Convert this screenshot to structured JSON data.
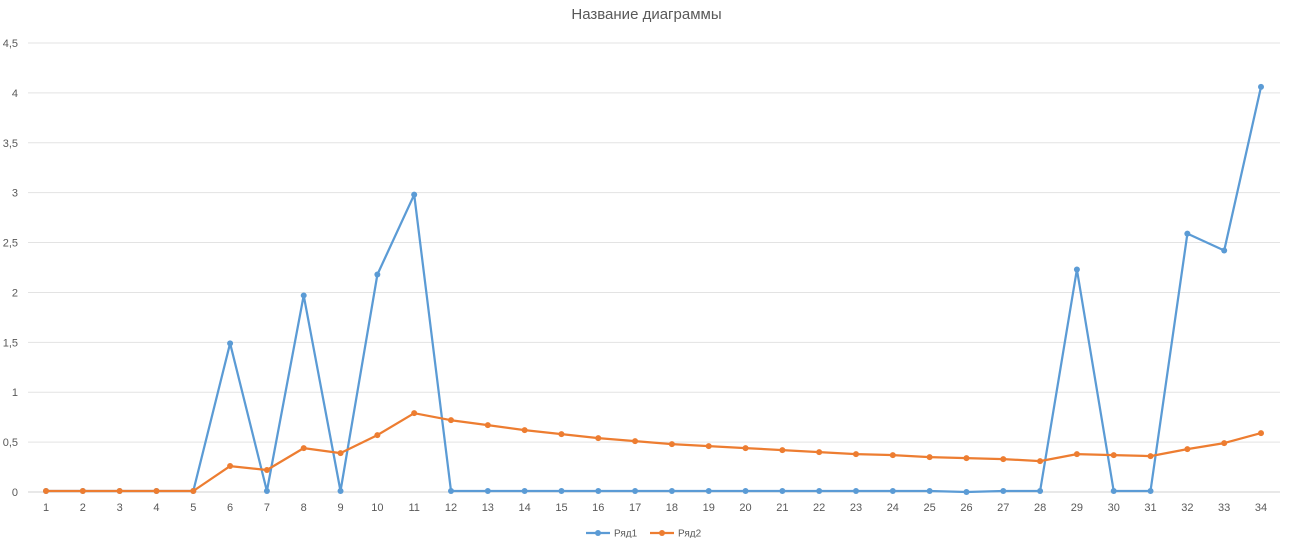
{
  "chart_data": {
    "type": "line",
    "title": "Название диаграммы",
    "xlabel": "",
    "ylabel": "",
    "categories": [
      "1",
      "2",
      "3",
      "4",
      "5",
      "6",
      "7",
      "8",
      "9",
      "10",
      "11",
      "12",
      "13",
      "14",
      "15",
      "16",
      "17",
      "18",
      "19",
      "20",
      "21",
      "22",
      "23",
      "24",
      "25",
      "26",
      "27",
      "28",
      "29",
      "30",
      "31",
      "32",
      "33",
      "34"
    ],
    "ylim": [
      0,
      4.5
    ],
    "yticks": [
      "0",
      "0,5",
      "1",
      "1,5",
      "2",
      "2,5",
      "3",
      "3,5",
      "4",
      "4,5"
    ],
    "grid": true,
    "legend_position": "bottom",
    "series": [
      {
        "name": "Ряд1",
        "color": "#5B9BD5",
        "values": [
          0.01,
          0.01,
          0.01,
          0.01,
          0.01,
          1.49,
          0.01,
          1.97,
          0.01,
          2.18,
          2.98,
          0.01,
          0.01,
          0.01,
          0.01,
          0.01,
          0.01,
          0.01,
          0.01,
          0.01,
          0.01,
          0.01,
          0.01,
          0.01,
          0.01,
          0.0,
          0.01,
          0.01,
          2.23,
          0.01,
          0.01,
          2.59,
          2.42,
          4.06
        ]
      },
      {
        "name": "Ряд2",
        "color": "#ED7D31",
        "values": [
          0.01,
          0.01,
          0.01,
          0.01,
          0.01,
          0.26,
          0.22,
          0.44,
          0.39,
          0.57,
          0.79,
          0.72,
          0.67,
          0.62,
          0.58,
          0.54,
          0.51,
          0.48,
          0.46,
          0.44,
          0.42,
          0.4,
          0.38,
          0.37,
          0.35,
          0.34,
          0.33,
          0.31,
          0.38,
          0.37,
          0.36,
          0.43,
          0.49,
          0.59
        ]
      }
    ]
  }
}
